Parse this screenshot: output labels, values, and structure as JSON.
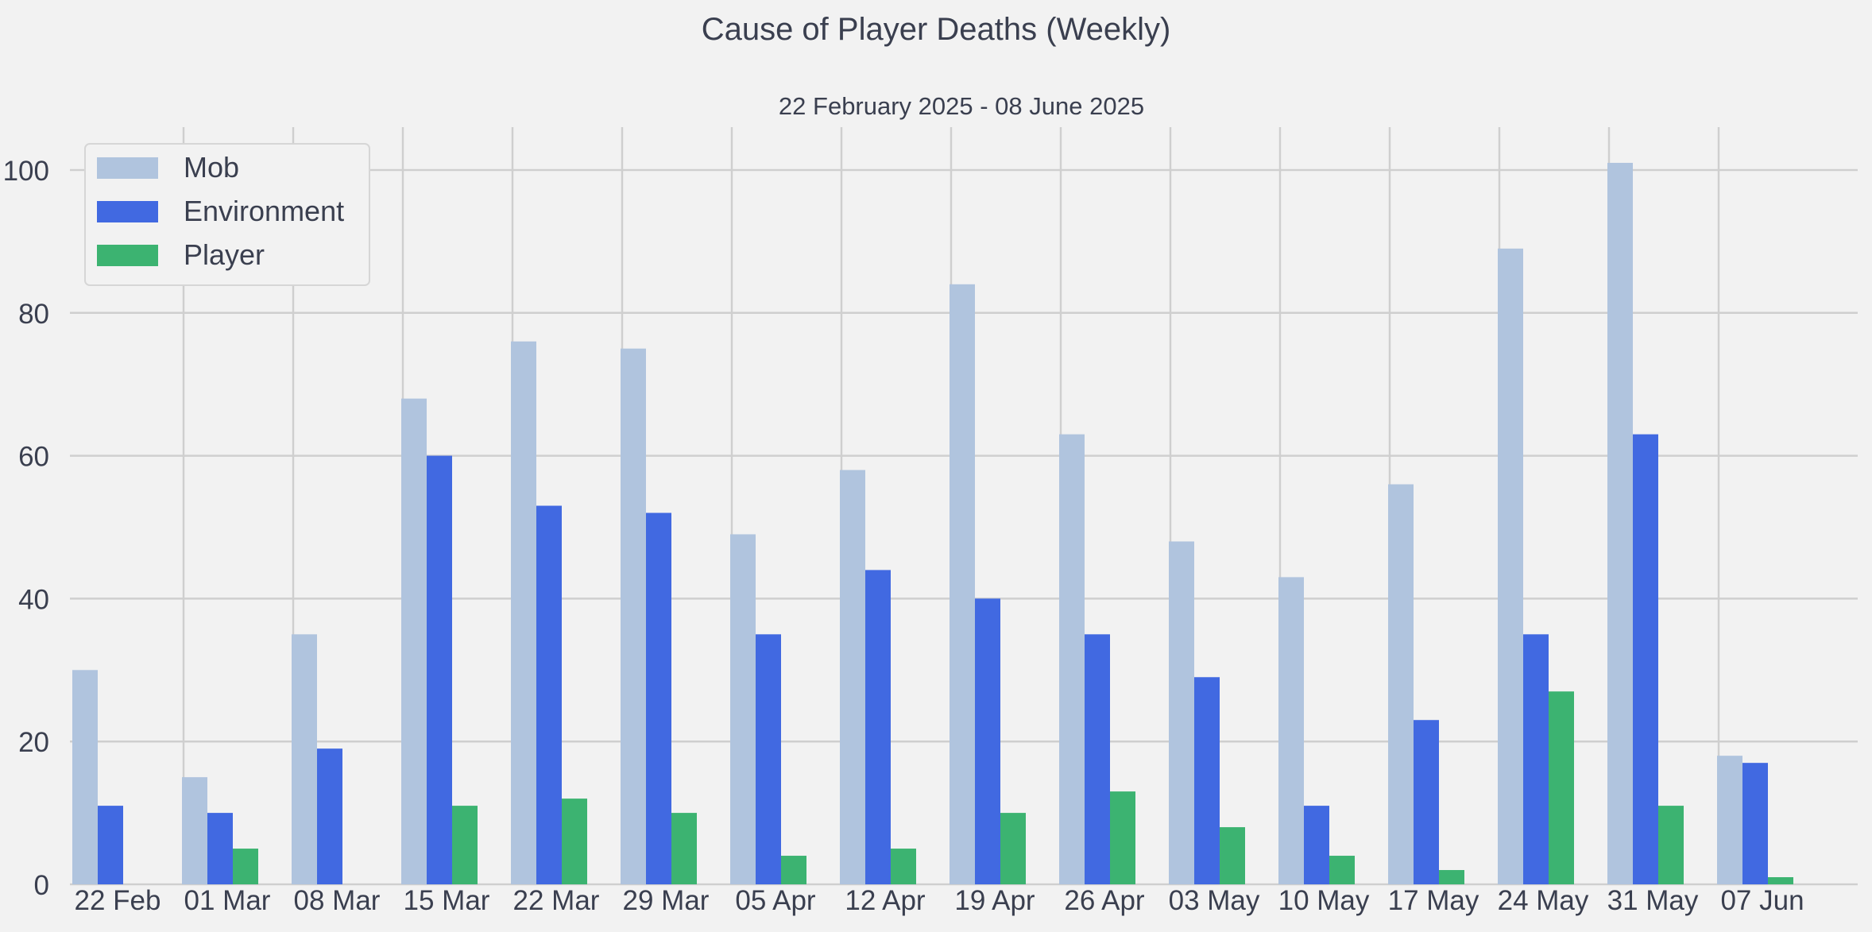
{
  "chart_data": {
    "type": "bar",
    "title": "Cause of Player Deaths (Weekly)",
    "subtitle": "22 February 2025 - 08 June 2025",
    "xlabel": "",
    "ylabel": "",
    "ylim": [
      0,
      106
    ],
    "yticks": [
      0,
      20,
      40,
      60,
      80,
      100
    ],
    "grid": true,
    "legend_position": "top-left",
    "categories": [
      "22 Feb",
      "01 Mar",
      "08 Mar",
      "15 Mar",
      "22 Mar",
      "29 Mar",
      "05 Apr",
      "12 Apr",
      "19 Apr",
      "26 Apr",
      "03 May",
      "10 May",
      "17 May",
      "24 May",
      "31 May",
      "07 Jun"
    ],
    "series": [
      {
        "name": "Mob",
        "color": "#b0c4de",
        "values": [
          30,
          15,
          35,
          68,
          76,
          75,
          49,
          58,
          84,
          63,
          48,
          43,
          56,
          89,
          101,
          18
        ]
      },
      {
        "name": "Environment",
        "color": "#4169e1",
        "values": [
          11,
          10,
          19,
          60,
          53,
          52,
          35,
          44,
          40,
          35,
          29,
          11,
          23,
          35,
          63,
          17
        ]
      },
      {
        "name": "Player",
        "color": "#3cb371",
        "values": [
          0,
          5,
          0,
          11,
          12,
          10,
          4,
          5,
          10,
          13,
          8,
          4,
          2,
          27,
          11,
          1
        ]
      }
    ]
  }
}
